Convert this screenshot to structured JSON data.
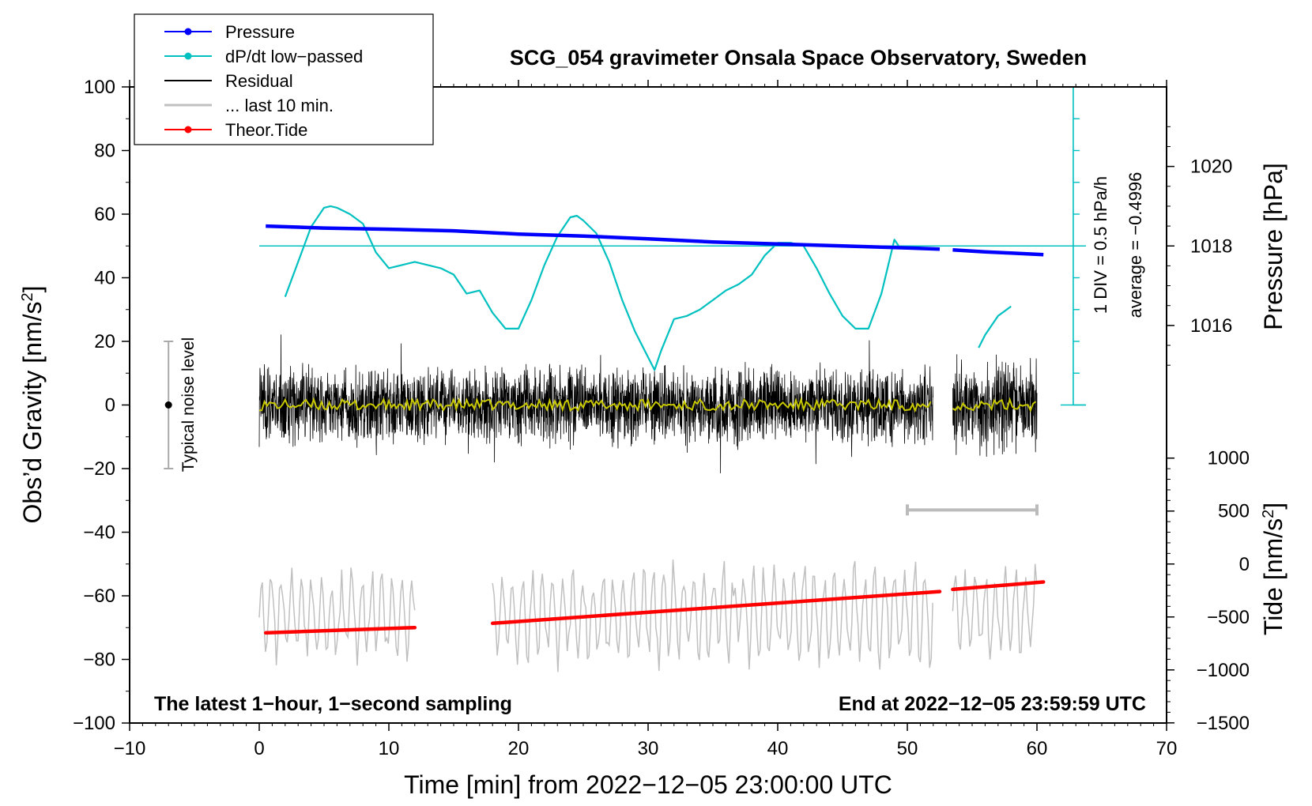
{
  "chart_data": {
    "type": "line",
    "title": "SCG_054 gravimeter Onsala Space Observatory, Sweden",
    "xlabel": "Time [min] from 2022−12−05 23:00:00 UTC",
    "ylabel_left": "Obs’d Gravity [nm/s²]",
    "ylabel_right_pressure": "Pressure [hPa]",
    "ylabel_right_tide": "Tide [nm/s²]",
    "xlim": [
      -10,
      70
    ],
    "ylim": [
      -100,
      100
    ],
    "x_ticks": [
      -10,
      0,
      10,
      20,
      30,
      40,
      50,
      60,
      70
    ],
    "x_tick_labels": [
      "−10",
      "0",
      "10",
      "20",
      "30",
      "40",
      "50",
      "60",
      "70"
    ],
    "y_ticks": [
      -100,
      -80,
      -60,
      -40,
      -20,
      0,
      20,
      40,
      60,
      80,
      100
    ],
    "y_tick_labels": [
      "−100",
      "−80",
      "−60",
      "−40",
      "−20",
      "0",
      "20",
      "40",
      "60",
      "80",
      "100"
    ],
    "pressure_axis": {
      "ticks": [
        1016,
        1018,
        1020
      ],
      "tick_labels": [
        "1016",
        "1018",
        "1020"
      ],
      "gravity_at_1016": 25,
      "gravity_per_hpa": 12.5
    },
    "tide_axis": {
      "ticks": [
        -1500,
        -1000,
        -500,
        0,
        500,
        1000
      ],
      "tick_labels": [
        "−1500",
        "−1000",
        "−500",
        "0",
        "500",
        "1000"
      ],
      "gravity_at_0": -50,
      "gravity_per_unit": 0.0333
    },
    "legend": [
      {
        "label": "Pressure",
        "color": "#0000ff",
        "marker": true
      },
      {
        "label": "dP/dt low−passed",
        "color": "#00c0c0",
        "marker": true
      },
      {
        "label": "Residual",
        "color": "#000000",
        "marker": false
      },
      {
        "label": "... last 10 min.",
        "color": "#c0c0c0",
        "marker": false
      },
      {
        "label": "Theor.Tide",
        "color": "#ff0000",
        "marker": true
      }
    ],
    "series": [
      {
        "name": "Pressure",
        "color": "#0000ff",
        "segments": [
          {
            "x": [
              0.5,
              5,
              10,
              15,
              20,
              25,
              30,
              35,
              40,
              45,
              50,
              52.5
            ],
            "y": [
              1018.5,
              1018.45,
              1018.42,
              1018.38,
              1018.3,
              1018.25,
              1018.18,
              1018.1,
              1018.05,
              1018.0,
              1017.95,
              1017.92
            ]
          },
          {
            "x": [
              53.5,
              56,
              58,
              60.5
            ],
            "y": [
              1017.9,
              1017.85,
              1017.82,
              1017.78
            ]
          }
        ]
      },
      {
        "name": "dP/dt low−passed",
        "color": "#00c0c0",
        "segments": [
          {
            "x": [
              2,
              3,
              4,
              5,
              5.5,
              6,
              7,
              8,
              9,
              10,
              11,
              12,
              13,
              14,
              15,
              16,
              17,
              18,
              19,
              20,
              21,
              22,
              23,
              24,
              24.5,
              25,
              26,
              27,
              28,
              29,
              30,
              30.5,
              31,
              32,
              33,
              34,
              35,
              36,
              37,
              38,
              39,
              40,
              41,
              42,
              43,
              44,
              45,
              46,
              47,
              48,
              49,
              49.5
            ],
            "y": [
              34,
              45,
              56,
              62,
              62.5,
              62,
              60,
              57,
              48,
              43,
              44,
              45,
              44,
              43,
              41,
              35,
              36,
              29,
              24,
              24,
              33,
              44,
              53,
              59,
              59.5,
              58,
              54,
              45,
              33,
              23,
              15,
              11,
              17,
              27,
              28,
              30,
              33,
              36,
              38,
              41,
              47,
              51,
              51,
              50,
              43,
              35,
              28,
              24,
              24,
              35,
              52,
              49
            ]
          },
          {
            "x": [
              55.5,
              56,
              57,
              58
            ],
            "y": [
              18,
              22,
              28,
              31
            ]
          }
        ]
      },
      {
        "name": "Residual",
        "color": "#000000",
        "segments": [
          {
            "x_start": 0,
            "x_end": 52,
            "amplitude": 11
          },
          {
            "x_start": 53.5,
            "x_end": 60,
            "amplitude": 13
          }
        ]
      },
      {
        "name": "Residual (smoothed)",
        "color": "#c8c800",
        "segments": [
          {
            "x_start": 0,
            "x_end": 52,
            "level": 0
          },
          {
            "x_start": 53.5,
            "x_end": 60,
            "level": 0
          }
        ]
      },
      {
        "name": "... last 10 min.",
        "color": "#c0c0c0",
        "segments": [
          {
            "x_start": 0,
            "x_end": 12,
            "center": -66,
            "amplitude": 12
          },
          {
            "x_start": 18,
            "x_end": 52,
            "center": -66,
            "amplitude": 14
          },
          {
            "x_start": 53.5,
            "x_end": 60,
            "center": -66,
            "amplitude": 12
          }
        ]
      },
      {
        "name": "Theor.Tide",
        "color": "#ff0000",
        "segments": [
          {
            "x": [
              0.5,
              12
            ],
            "y": [
              -650,
              -600
            ]
          },
          {
            "x": [
              18,
              52.5
            ],
            "y": [
              -560,
              -260
            ]
          },
          {
            "x": [
              53.5,
              60.5
            ],
            "y": [
              -240,
              -170
            ]
          }
        ]
      }
    ],
    "dpdt_scale": {
      "label_div": "1 DIV = 0.5 hPa/h",
      "label_avg": "average = −0.4996",
      "reference_y": 50
    },
    "typical_noise": {
      "label": "Typical noise level",
      "center": 0,
      "half_range": 20,
      "x": -7
    },
    "last10_bar": {
      "x_start": 50,
      "x_end": 60,
      "y": -33
    },
    "footer_left": "The latest 1−hour, 1−second sampling",
    "footer_right": "End at 2022−12−05 23:59:59 UTC"
  }
}
